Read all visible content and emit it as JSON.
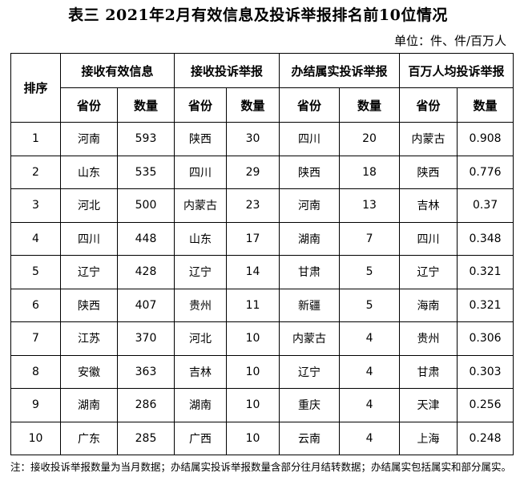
{
  "title": "表三 2021年2月有效信息及投诉举报排名前10位情况",
  "unit": "单位：件、件/百万人",
  "table": {
    "rank_header": "排序",
    "groups": [
      "接收有效信息",
      "接收投诉举报",
      "办结属实投诉举报",
      "百万人均投诉举报"
    ],
    "sub_headers": [
      "省份",
      "数量",
      "省份",
      "数量",
      "省份",
      "数量",
      "省份",
      "数量"
    ],
    "rows": [
      [
        "1",
        "河南",
        "593",
        "陕西",
        "30",
        "四川",
        "20",
        "内蒙古",
        "0.908"
      ],
      [
        "2",
        "山东",
        "535",
        "四川",
        "29",
        "陕西",
        "18",
        "陕西",
        "0.776"
      ],
      [
        "3",
        "河北",
        "500",
        "内蒙古",
        "23",
        "河南",
        "13",
        "吉林",
        "0.37"
      ],
      [
        "4",
        "四川",
        "448",
        "山东",
        "17",
        "湖南",
        "7",
        "四川",
        "0.348"
      ],
      [
        "5",
        "辽宁",
        "428",
        "辽宁",
        "14",
        "甘肃",
        "5",
        "辽宁",
        "0.321"
      ],
      [
        "6",
        "陕西",
        "407",
        "贵州",
        "11",
        "新疆",
        "5",
        "海南",
        "0.321"
      ],
      [
        "7",
        "江苏",
        "370",
        "河北",
        "10",
        "内蒙古",
        "4",
        "贵州",
        "0.306"
      ],
      [
        "8",
        "安徽",
        "363",
        "吉林",
        "10",
        "辽宁",
        "4",
        "甘肃",
        "0.303"
      ],
      [
        "9",
        "湖南",
        "286",
        "湖南",
        "10",
        "重庆",
        "4",
        "天津",
        "0.256"
      ],
      [
        "10",
        "广东",
        "285",
        "广西",
        "10",
        "云南",
        "4",
        "上海",
        "0.248"
      ]
    ]
  },
  "note": "注：接收投诉举报数量为当月数据；办结属实投诉举报数量含部分往月结转数据；办结属实包括属实和部分属实。"
}
